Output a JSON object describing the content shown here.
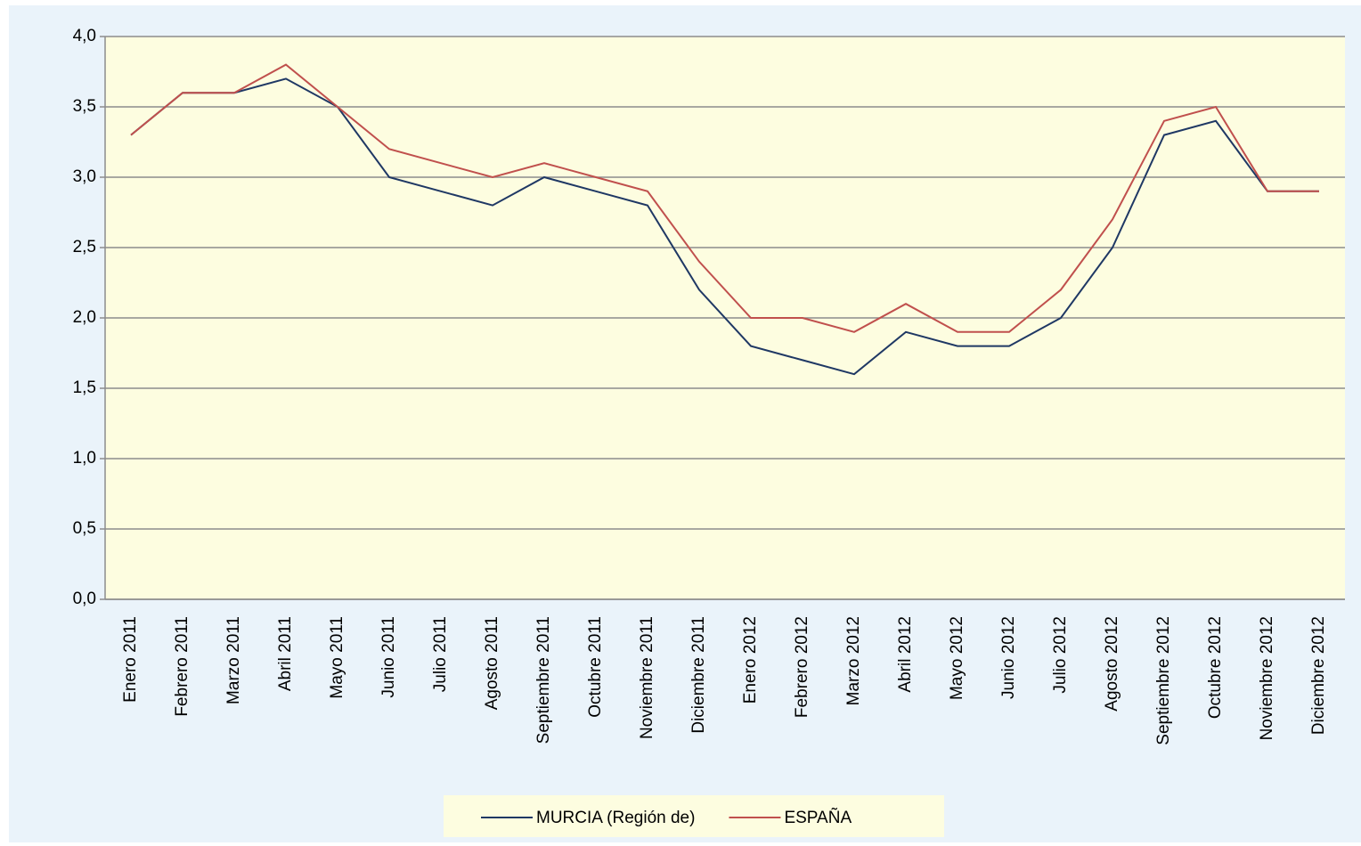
{
  "chart_data": {
    "type": "line",
    "categories": [
      "Enero 2011",
      "Febrero 2011",
      "Marzo 2011",
      "Abril 2011",
      "Mayo 2011",
      "Junio 2011",
      "Julio 2011",
      "Agosto 2011",
      "Septiembre 2011",
      "Octubre 2011",
      "Noviembre 2011",
      "Diciembre 2011",
      "Enero 2012",
      "Febrero 2012",
      "Marzo 2012",
      "Abril 2012",
      "Mayo 2012",
      "Junio 2012",
      "Julio 2012",
      "Agosto 2012",
      "Septiembre 2012",
      "Octubre 2012",
      "Noviembre 2012",
      "Diciembre 2012"
    ],
    "series": [
      {
        "name": "MURCIA (Región de)",
        "color": "#1f3864",
        "values": [
          3.3,
          3.6,
          3.6,
          3.7,
          3.5,
          3.0,
          2.9,
          2.8,
          3.0,
          2.9,
          2.8,
          2.2,
          1.8,
          1.7,
          1.6,
          1.9,
          1.8,
          1.8,
          2.0,
          2.5,
          3.3,
          3.4,
          2.9,
          2.9
        ]
      },
      {
        "name": "ESPAÑA",
        "color": "#c0504d",
        "values": [
          3.3,
          3.6,
          3.6,
          3.8,
          3.5,
          3.2,
          3.1,
          3.0,
          3.1,
          3.0,
          2.9,
          2.4,
          2.0,
          2.0,
          1.9,
          2.1,
          1.9,
          1.9,
          2.2,
          2.7,
          3.4,
          3.5,
          2.9,
          2.9
        ]
      }
    ],
    "ylim": [
      0,
      4
    ],
    "yticks": [
      {
        "value": 0,
        "label": "0,0"
      },
      {
        "value": 0.5,
        "label": "0,5"
      },
      {
        "value": 1,
        "label": "1,0"
      },
      {
        "value": 1.5,
        "label": "1,5"
      },
      {
        "value": 2,
        "label": "2,0"
      },
      {
        "value": 2.5,
        "label": "2,5"
      },
      {
        "value": 3,
        "label": "3,0"
      },
      {
        "value": 3.5,
        "label": "3,5"
      },
      {
        "value": 4,
        "label": "4,0"
      }
    ],
    "grid": true,
    "legend": "bottom"
  }
}
